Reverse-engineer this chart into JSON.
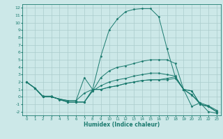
{
  "xlabel": "Humidex (Indice chaleur)",
  "ylabel": "",
  "xlim": [
    -0.5,
    23.5
  ],
  "ylim": [
    -2.5,
    12.5
  ],
  "background_color": "#cce8e8",
  "grid_color": "#aacccc",
  "line_color": "#1a7a6e",
  "xticks": [
    0,
    1,
    2,
    3,
    4,
    5,
    6,
    7,
    8,
    9,
    10,
    11,
    12,
    13,
    14,
    15,
    16,
    17,
    18,
    19,
    20,
    21,
    22,
    23
  ],
  "yticks": [
    -2,
    -1,
    0,
    1,
    2,
    3,
    4,
    5,
    6,
    7,
    8,
    9,
    10,
    11,
    12
  ],
  "lines": [
    [
      2.0,
      1.2,
      0.1,
      0.1,
      -0.4,
      -0.7,
      -0.7,
      -0.7,
      1.0,
      5.5,
      9.0,
      10.5,
      11.5,
      11.8,
      11.9,
      11.9,
      10.8,
      6.5,
      2.7,
      1.0,
      -1.3,
      -0.8,
      -2.0,
      -2.2
    ],
    [
      2.0,
      1.2,
      0.0,
      0.0,
      -0.3,
      -0.5,
      -0.5,
      2.6,
      1.0,
      1.0,
      1.3,
      1.5,
      1.8,
      2.0,
      2.2,
      2.3,
      2.3,
      2.5,
      2.7,
      1.0,
      0.8,
      -1.0,
      -1.3,
      -2.0
    ],
    [
      2.0,
      1.2,
      0.0,
      0.0,
      -0.3,
      -0.5,
      -0.5,
      0.5,
      1.0,
      1.0,
      1.3,
      1.5,
      1.8,
      2.0,
      2.2,
      2.3,
      2.3,
      2.3,
      2.5,
      1.0,
      0.8,
      -1.0,
      -1.3,
      -2.0
    ],
    [
      2.0,
      1.2,
      0.0,
      0.0,
      -0.3,
      -0.7,
      -0.7,
      -0.7,
      0.8,
      2.6,
      3.5,
      4.0,
      4.2,
      4.5,
      4.8,
      5.0,
      5.0,
      5.0,
      4.5,
      1.0,
      0.3,
      -1.0,
      -1.3,
      -2.0
    ],
    [
      2.0,
      1.2,
      0.0,
      0.0,
      -0.3,
      -0.7,
      -0.7,
      -0.7,
      0.8,
      1.5,
      2.0,
      2.3,
      2.5,
      2.8,
      3.0,
      3.2,
      3.2,
      3.0,
      2.8,
      1.0,
      0.2,
      -0.8,
      -1.2,
      -1.8
    ]
  ]
}
